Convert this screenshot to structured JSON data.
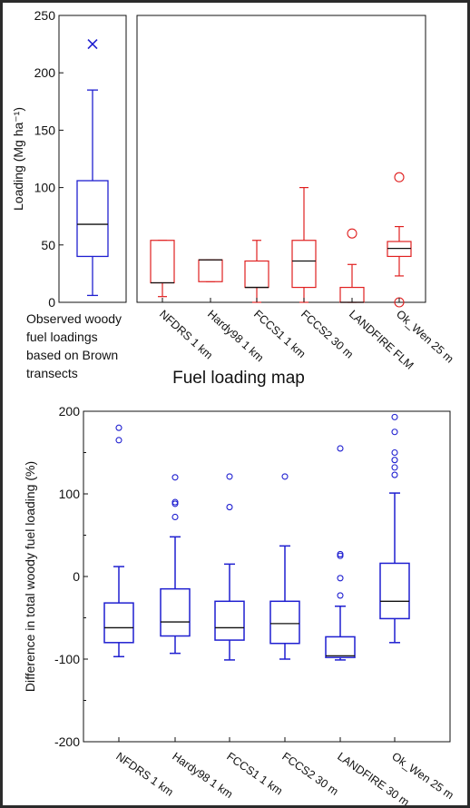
{
  "chart_data": [
    {
      "type": "box",
      "panel": "observed",
      "ylabel": "Loading (Mg ha⁻¹)",
      "ylim": [
        0,
        250
      ],
      "yticks": [
        0,
        50,
        100,
        150,
        200,
        250
      ],
      "color": "#1f1fd0",
      "caption": [
        "Observed woody",
        "fuel loadings",
        "based on Brown",
        "transects"
      ],
      "series": [
        {
          "whisker_low": 6,
          "q1": 40,
          "median": 68,
          "q3": 106,
          "whisker_high": 185,
          "outliers": [
            225
          ],
          "outlier_marker": "x"
        }
      ]
    },
    {
      "type": "box",
      "panel": "fuel-loading-map",
      "title": "Fuel loading map",
      "ylim": [
        0,
        250
      ],
      "color": "#e02020",
      "categories": [
        "NFDRS 1 km",
        "Hardy98 1 km",
        "FCCS1 1 km",
        "FCCS2 30 m",
        "LANDFIRE FLM",
        "Ok_Wen 25 m"
      ],
      "series": [
        {
          "whisker_low": 5,
          "q1": 17,
          "median": 17,
          "q3": 54,
          "whisker_high": 54,
          "outliers": []
        },
        {
          "whisker_low": 18,
          "q1": 18,
          "median": 37,
          "q3": 37,
          "whisker_high": 37,
          "outliers": []
        },
        {
          "whisker_low": 0,
          "q1": 13,
          "median": 13,
          "q3": 36,
          "whisker_high": 54,
          "outliers": []
        },
        {
          "whisker_low": 0,
          "q1": 13,
          "median": 36,
          "q3": 54,
          "whisker_high": 100,
          "outliers": []
        },
        {
          "whisker_low": 0,
          "q1": 0,
          "median": 0,
          "q3": 13,
          "whisker_high": 33,
          "outliers": [
            60
          ]
        },
        {
          "whisker_low": 23,
          "q1": 40,
          "median": 47,
          "q3": 53,
          "whisker_high": 66,
          "outliers": [
            109,
            0
          ]
        }
      ]
    },
    {
      "type": "box",
      "panel": "difference",
      "ylabel": "Difference in total woody fuel loading (%)",
      "ylim": [
        -200,
        200
      ],
      "yticks": [
        -200,
        -100,
        0,
        100,
        200
      ],
      "color": "#1f1fd0",
      "categories": [
        "NFDRS 1 km",
        "Hardy98 1 km",
        "FCCS1 1 km",
        "FCCS2 30 m",
        "LANDFIRE 30 m",
        "Ok_Wen 25 m"
      ],
      "series": [
        {
          "whisker_low": -97,
          "q1": -80,
          "median": -62,
          "q3": -32,
          "whisker_high": 12,
          "outliers": [
            165,
            180
          ]
        },
        {
          "whisker_low": -93,
          "q1": -72,
          "median": -55,
          "q3": -15,
          "whisker_high": 48,
          "outliers": [
            72,
            88,
            90,
            120
          ]
        },
        {
          "whisker_low": -101,
          "q1": -77,
          "median": -62,
          "q3": -30,
          "whisker_high": 15,
          "outliers": [
            84,
            121
          ]
        },
        {
          "whisker_low": -100,
          "q1": -81,
          "median": -57,
          "q3": -30,
          "whisker_high": 37,
          "outliers": [
            121
          ]
        },
        {
          "whisker_low": -101,
          "q1": -98,
          "median": -96,
          "q3": -73,
          "whisker_high": -36,
          "outliers": [
            -23,
            -2,
            25,
            27,
            155
          ]
        },
        {
          "whisker_low": -80,
          "q1": -51,
          "median": -30,
          "q3": 16,
          "whisker_high": 101,
          "outliers": [
            123,
            132,
            141,
            150,
            175,
            193
          ]
        }
      ]
    }
  ]
}
